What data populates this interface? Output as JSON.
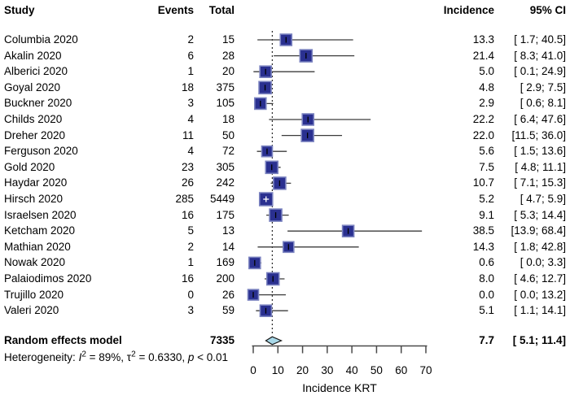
{
  "columns": {
    "study": "Study",
    "events": "Events",
    "total": "Total",
    "incidence": "Incidence",
    "ci": "95% CI"
  },
  "chart_data": {
    "type": "forest",
    "xlabel": "Incidence KRT",
    "x_ticks": [
      0,
      10,
      20,
      30,
      40,
      50,
      60,
      70
    ],
    "xlim": [
      0,
      70
    ],
    "studies": [
      {
        "name": "Columbia 2020",
        "events": "2",
        "total": "15",
        "est": 13.3,
        "lo": 1.7,
        "hi": 40.5,
        "incidence": "13.3",
        "ci": "[ 1.7; 40.5]",
        "size": 14
      },
      {
        "name": "Akalin 2020",
        "events": "6",
        "total": "28",
        "est": 21.4,
        "lo": 8.3,
        "hi": 41.0,
        "incidence": "21.4",
        "ci": "[ 8.3; 41.0]",
        "size": 15
      },
      {
        "name": "Alberici 2020",
        "events": "1",
        "total": "20",
        "est": 5.0,
        "lo": 0.1,
        "hi": 24.9,
        "incidence": "5.0",
        "ci": "[ 0.1; 24.9]",
        "size": 14
      },
      {
        "name": "Goyal 2020",
        "events": "18",
        "total": "375",
        "est": 4.8,
        "lo": 2.9,
        "hi": 7.5,
        "incidence": "4.8",
        "ci": "[ 2.9;  7.5]",
        "size": 15
      },
      {
        "name": "Buckner 2020",
        "events": "3",
        "total": "105",
        "est": 2.9,
        "lo": 0.6,
        "hi": 8.1,
        "incidence": "2.9",
        "ci": "[ 0.6;  8.1]",
        "size": 14
      },
      {
        "name": "Childs 2020",
        "events": "4",
        "total": "18",
        "est": 22.2,
        "lo": 6.4,
        "hi": 47.6,
        "incidence": "22.2",
        "ci": "[ 6.4; 47.6]",
        "size": 14
      },
      {
        "name": "Dreher 2020",
        "events": "11",
        "total": "50",
        "est": 22.0,
        "lo": 11.5,
        "hi": 36.0,
        "incidence": "22.0",
        "ci": "[11.5; 36.0]",
        "size": 15
      },
      {
        "name": "Ferguson 2020",
        "events": "4",
        "total": "72",
        "est": 5.6,
        "lo": 1.5,
        "hi": 13.6,
        "incidence": "5.6",
        "ci": "[ 1.5; 13.6]",
        "size": 13
      },
      {
        "name": "Gold 2020",
        "events": "23",
        "total": "305",
        "est": 7.5,
        "lo": 4.8,
        "hi": 11.1,
        "incidence": "7.5",
        "ci": "[ 4.8; 11.1]",
        "size": 15
      },
      {
        "name": "Haydar 2020",
        "events": "26",
        "total": "242",
        "est": 10.7,
        "lo": 7.1,
        "hi": 15.3,
        "incidence": "10.7",
        "ci": "[ 7.1; 15.3]",
        "size": 15
      },
      {
        "name": "Hirsch 2020",
        "events": "285",
        "total": "5449",
        "est": 5.2,
        "lo": 4.7,
        "hi": 5.9,
        "incidence": "5.2",
        "ci": "[ 4.7;  5.9]",
        "size": 16
      },
      {
        "name": "Israelsen 2020",
        "events": "16",
        "total": "175",
        "est": 9.1,
        "lo": 5.3,
        "hi": 14.4,
        "incidence": "9.1",
        "ci": "[ 5.3; 14.4]",
        "size": 15
      },
      {
        "name": "Ketcham 2020",
        "events": "5",
        "total": "13",
        "est": 38.5,
        "lo": 13.9,
        "hi": 68.4,
        "incidence": "38.5",
        "ci": "[13.9; 68.4]",
        "size": 14
      },
      {
        "name": "Mathian 2020",
        "events": "2",
        "total": "14",
        "est": 14.3,
        "lo": 1.8,
        "hi": 42.8,
        "incidence": "14.3",
        "ci": "[ 1.8; 42.8]",
        "size": 13
      },
      {
        "name": "Nowak 2020",
        "events": "1",
        "total": "169",
        "est": 0.6,
        "lo": 0.0,
        "hi": 3.3,
        "incidence": "0.6",
        "ci": "[ 0.0;  3.3]",
        "size": 14
      },
      {
        "name": "Palaiodimos 2020",
        "events": "16",
        "total": "200",
        "est": 8.0,
        "lo": 4.6,
        "hi": 12.7,
        "incidence": "8.0",
        "ci": "[ 4.6; 12.7]",
        "size": 15
      },
      {
        "name": "Trujillo 2020",
        "events": "0",
        "total": "26",
        "est": 0.0,
        "lo": 0.0,
        "hi": 13.2,
        "incidence": "0.0",
        "ci": "[ 0.0; 13.2]",
        "size": 13
      },
      {
        "name": "Valeri 2020",
        "events": "3",
        "total": "59",
        "est": 5.1,
        "lo": 1.1,
        "hi": 14.1,
        "incidence": "5.1",
        "ci": "[ 1.1; 14.1]",
        "size": 14
      }
    ],
    "summary": {
      "label": "Random effects model",
      "total": "7335",
      "est": 7.7,
      "lo": 5.1,
      "hi": 11.4,
      "incidence": "7.7",
      "ci": "[ 5.1; 11.4]"
    },
    "heterogeneity": {
      "prefix": "Heterogeneity: ",
      "i_sym": "I",
      "i_sup": "2",
      "seg1": " = 89%, τ",
      "tau_sup": "2",
      "seg2": " = 0.6330, ",
      "p_sym": "p",
      "seg3": " < 0.01"
    }
  },
  "colors": {
    "square_fill": "#2a3090",
    "square_border": "#7b83c0",
    "ci_line": "#3c3c3c",
    "marker": "#000000",
    "marker_inverse": "#ffffff",
    "diamond_fill": "#a8d8e8",
    "diamond_border": "#1a1a1a",
    "ref_line": "#000000",
    "axis": "#4a4a4a",
    "text": "#000000"
  }
}
